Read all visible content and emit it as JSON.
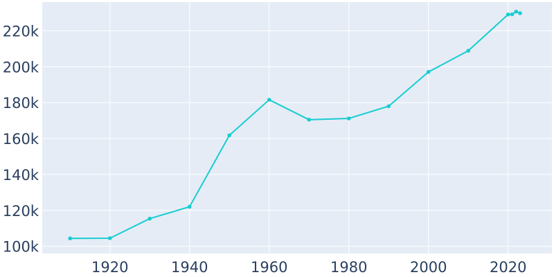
{
  "chart_data": {
    "type": "line",
    "title": "",
    "xlabel": "",
    "ylabel": "",
    "xlim": [
      1903,
      2031
    ],
    "ylim": [
      96000,
      236000
    ],
    "grid": true,
    "legend": "none",
    "x_ticks": [
      1920,
      1940,
      1960,
      1980,
      2000,
      2020
    ],
    "x_tick_labels": [
      "1920",
      "1940",
      "1960",
      "1980",
      "2000",
      "2020"
    ],
    "y_ticks": [
      100000,
      120000,
      140000,
      160000,
      180000,
      200000,
      220000
    ],
    "y_tick_labels": [
      "100k",
      "120k",
      "140k",
      "160k",
      "180k",
      "200k",
      "220k"
    ],
    "series": [
      {
        "x": [
          1910,
          1920,
          1930,
          1940,
          1950,
          1960,
          1970,
          1980,
          1990,
          2000,
          2010,
          2020,
          2021,
          2022,
          2023
        ],
        "y": [
          104400,
          104500,
          115400,
          122000,
          161800,
          181600,
          170500,
          171200,
          178000,
          197100,
          208900,
          229100,
          229200,
          230700,
          229800
        ]
      }
    ]
  },
  "colors": {
    "plot_background": "#e5ecf6",
    "series": "#17cdd0",
    "grid": "#ffffff",
    "tick_text": "#2a3f5f"
  }
}
